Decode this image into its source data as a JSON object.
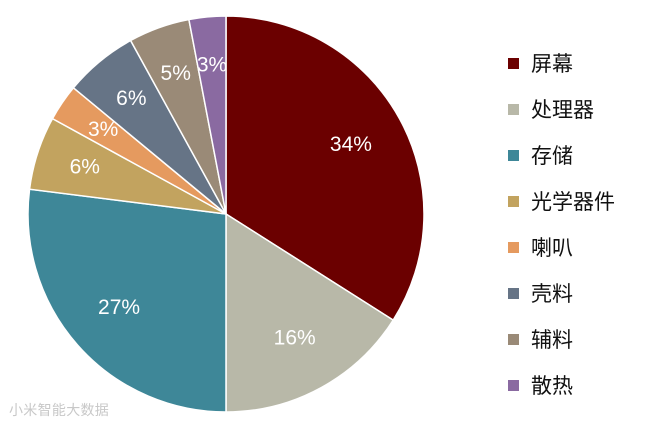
{
  "chart_data": {
    "type": "pie",
    "slices": [
      {
        "label": "屏幕",
        "value": 34,
        "display": "34%",
        "color": "#6b0000"
      },
      {
        "label": "处理器",
        "value": 16,
        "display": "16%",
        "color": "#b8b8a8"
      },
      {
        "label": "存储",
        "value": 27,
        "display": "27%",
        "color": "#3e8798"
      },
      {
        "label": "光学器件",
        "value": 6,
        "display": "6%",
        "color": "#c2a35f"
      },
      {
        "label": "喇叭",
        "value": 3,
        "display": "3%",
        "color": "#e59a5f"
      },
      {
        "label": "壳料",
        "value": 6,
        "display": "6%",
        "color": "#667486"
      },
      {
        "label": "辅料",
        "value": 5,
        "display": "5%",
        "color": "#9a8a77"
      },
      {
        "label": "散热",
        "value": 3,
        "display": "3%",
        "color": "#8a6aa1"
      }
    ],
    "legend_placement": "right"
  },
  "watermark": "小米智能大数据"
}
